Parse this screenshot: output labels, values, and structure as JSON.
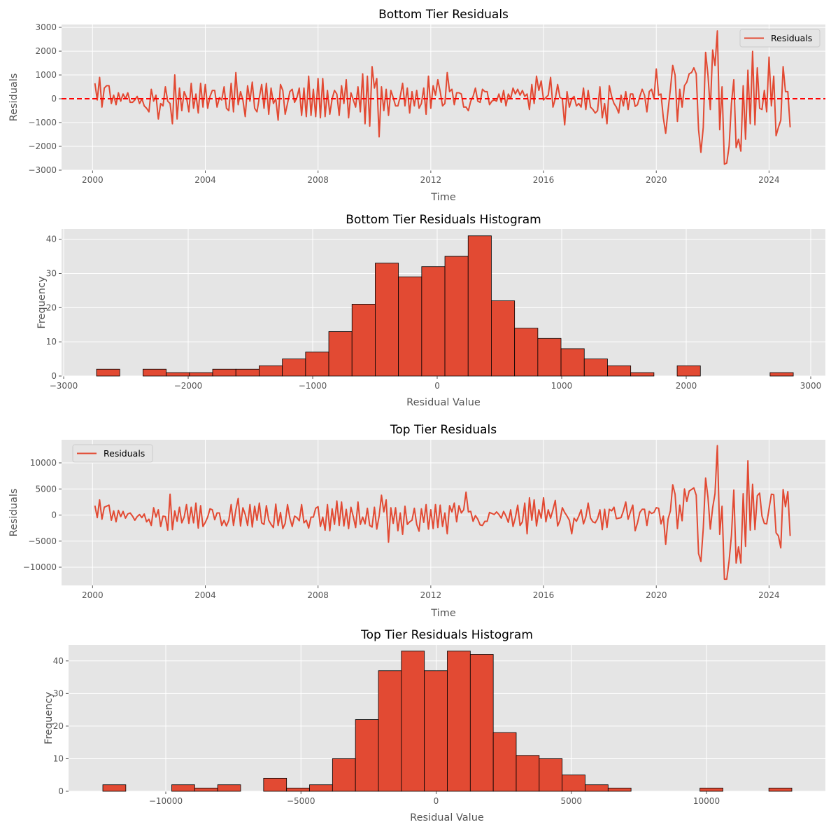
{
  "chart_data": [
    {
      "type": "line",
      "title": "Bottom Tier Residuals",
      "xlabel": "Time",
      "ylabel": "Residuals",
      "x_start": "2000-02",
      "x_frequency": "monthly",
      "xlim": [
        1998.9,
        2026.0
      ],
      "ylim": [
        -3000,
        3120
      ],
      "xticks": [
        2000,
        2004,
        2008,
        2012,
        2016,
        2020,
        2024
      ],
      "yticks": [
        -3000,
        -2000,
        -1000,
        0,
        1000,
        2000,
        3000
      ],
      "grid": true,
      "legend": {
        "position": "top-right",
        "entries": [
          "Residuals"
        ]
      },
      "reference_line": {
        "y": 0,
        "style": "dashed",
        "color": "#FF0000"
      },
      "series": [
        {
          "name": "Residuals",
          "color": "#E24A33",
          "values": [
            650,
            -50,
            900,
            -350,
            450,
            550,
            550,
            -200,
            150,
            -250,
            250,
            -100,
            200,
            0,
            250,
            -150,
            -150,
            -50,
            100,
            -200,
            0,
            -300,
            -400,
            -550,
            400,
            -100,
            150,
            -850,
            -200,
            -300,
            500,
            -100,
            -200,
            -1050,
            1000,
            -850,
            450,
            -500,
            300,
            50,
            -550,
            650,
            -400,
            200,
            -600,
            650,
            -350,
            600,
            -400,
            100,
            350,
            350,
            -350,
            50,
            -50,
            500,
            -400,
            -500,
            650,
            -550,
            1100,
            -250,
            300,
            -50,
            -750,
            550,
            -100,
            700,
            -400,
            -550,
            50,
            600,
            -400,
            650,
            -650,
            450,
            -200,
            0,
            -900,
            600,
            350,
            -650,
            -200,
            300,
            400,
            -150,
            50,
            450,
            -700,
            450,
            -750,
            950,
            -700,
            400,
            -750,
            850,
            -800,
            850,
            -750,
            350,
            -650,
            0,
            350,
            200,
            -700,
            550,
            -200,
            800,
            -800,
            250,
            -50,
            -350,
            500,
            -550,
            1050,
            -1050,
            950,
            -1150,
            1350,
            450,
            850,
            -1600,
            500,
            -500,
            400,
            -700,
            350,
            50,
            -300,
            -300,
            100,
            650,
            -300,
            450,
            -600,
            300,
            -300,
            350,
            -400,
            -200,
            450,
            -650,
            950,
            -400,
            550,
            150,
            800,
            300,
            -300,
            -200,
            1100,
            300,
            400,
            -250,
            250,
            250,
            200,
            -350,
            -350,
            -500,
            -100,
            100,
            450,
            -100,
            -150,
            400,
            300,
            300,
            -250,
            -100,
            -50,
            -100,
            200,
            -150,
            350,
            -300,
            200,
            0,
            450,
            200,
            400,
            150,
            350,
            100,
            200,
            -450,
            600,
            -200,
            950,
            350,
            750,
            -50,
            50,
            150,
            900,
            -350,
            0,
            600,
            50,
            0,
            -1100,
            300,
            -350,
            0,
            100,
            -300,
            -200,
            -350,
            450,
            -450,
            350,
            -350,
            -450,
            -600,
            -500,
            500,
            -800,
            -200,
            -1050,
            550,
            100,
            -200,
            -350,
            -600,
            150,
            -300,
            300,
            -450,
            200,
            200,
            -320,
            -250,
            100,
            400,
            150,
            -550,
            300,
            400,
            0,
            1250,
            150,
            200,
            -800,
            -1450,
            -500,
            400,
            1400,
            1000,
            -950,
            400,
            -350,
            550,
            700,
            1050,
            1100,
            1300,
            1050,
            -1300,
            -2250,
            -1200,
            1950,
            1000,
            -450,
            2050,
            1400,
            2850,
            -1300,
            500,
            -2750,
            -2700,
            -2000,
            -200,
            800,
            -2050,
            -1700,
            -2200,
            550,
            -1700,
            1200,
            -1050,
            1990,
            -1100,
            1300,
            -400,
            -450,
            350,
            -550,
            1750,
            -300,
            950,
            -1550,
            -1200,
            -900,
            1350,
            300,
            300,
            -1200
          ]
        }
      ]
    },
    {
      "type": "bar",
      "title": "Bottom Tier Residuals Histogram",
      "xlabel": "Residual Value",
      "ylabel": "Frequency",
      "bin_range": [
        -2736,
        2860
      ],
      "bins": 30,
      "counts": [
        2,
        0,
        2,
        1,
        1,
        2,
        2,
        3,
        5,
        7,
        13,
        21,
        33,
        29,
        32,
        35,
        41,
        22,
        14,
        11,
        8,
        5,
        3,
        1,
        0,
        3,
        0,
        0,
        0,
        1
      ],
      "xlim": [
        -3017,
        3118
      ],
      "ylim": [
        0,
        43
      ],
      "xticks": [
        -3000,
        -2000,
        -1000,
        0,
        1000,
        2000,
        3000
      ],
      "yticks": [
        0,
        10,
        20,
        30,
        40
      ],
      "grid": true,
      "color": "#E24A33"
    },
    {
      "type": "line",
      "title": "Top Tier Residuals",
      "xlabel": "Time",
      "ylabel": "Residuals",
      "x_start": "2000-02",
      "x_frequency": "monthly",
      "xlim": [
        1998.9,
        2026.0
      ],
      "ylim": [
        -13490,
        14430
      ],
      "xticks": [
        2000,
        2004,
        2008,
        2012,
        2016,
        2020,
        2024
      ],
      "yticks": [
        -10000,
        -5000,
        0,
        5000,
        10000
      ],
      "grid": true,
      "legend": {
        "position": "top-left",
        "entries": [
          "Residuals"
        ]
      },
      "series": [
        {
          "name": "Residuals",
          "color": "#E24A33",
          "values": [
            1800,
            -500,
            2900,
            -800,
            1500,
            1700,
            1900,
            -1000,
            800,
            -1300,
            900,
            -300,
            700,
            -600,
            200,
            400,
            -200,
            -1000,
            -300,
            100,
            -500,
            200,
            -1300,
            -800,
            -2000,
            1400,
            -400,
            1000,
            -2200,
            -200,
            -300,
            -2900,
            4000,
            -2800,
            800,
            -1200,
            1500,
            -1500,
            -400,
            2000,
            -1600,
            1500,
            -1500,
            2300,
            -2500,
            1800,
            -2200,
            -1400,
            -400,
            1200,
            1000,
            -900,
            400,
            400,
            -2000,
            -1000,
            -2100,
            -1000,
            2000,
            -2000,
            1000,
            3200,
            -2100,
            1400,
            100,
            -2000,
            2000,
            -2300,
            1700,
            -1000,
            2300,
            -1500,
            -1800,
            1800,
            -1000,
            -1800,
            -2400,
            2100,
            -2000,
            500,
            -2600,
            -1600,
            2000,
            -600,
            -2200,
            -200,
            -500,
            -1100,
            2000,
            -1500,
            -1000,
            -2500,
            -400,
            -400,
            1300,
            1600,
            -2200,
            -400,
            -2900,
            2000,
            -3000,
            1200,
            -1800,
            2700,
            -2000,
            2500,
            -2100,
            1100,
            -2600,
            1500,
            -300,
            -2400,
            2500,
            -1800,
            -400,
            -1700,
            1300,
            -2000,
            -2300,
            1500,
            -2700,
            -200,
            3800,
            600,
            2900,
            -5200,
            1400,
            -1600,
            1400,
            -3000,
            400,
            -3700,
            1700,
            -1800,
            -1300,
            -1000,
            1300,
            -1800,
            -3100,
            1200,
            -1400,
            2000,
            -2700,
            1000,
            -2600,
            2000,
            -2400,
            1900,
            -2200,
            400,
            -3600,
            1800,
            600,
            2300,
            -1300,
            1800,
            400,
            1000,
            4400,
            600,
            700,
            -1200,
            -100,
            -800,
            -1900,
            -2000,
            -1200,
            -1200,
            500,
            300,
            100,
            600,
            100,
            -600,
            700,
            -200,
            -1400,
            1000,
            -2200,
            -500,
            1900,
            -2000,
            -1300,
            2300,
            -3600,
            3300,
            -1000,
            2900,
            -2100,
            1000,
            -600,
            3300,
            -1300,
            1000,
            -600,
            1000,
            2800,
            -2100,
            -1000,
            1400,
            500,
            -200,
            -1000,
            -3600,
            -600,
            -1200,
            -200,
            1000,
            -1700,
            -400,
            2300,
            -600,
            -1300,
            -1500,
            -700,
            1000,
            -2800,
            1100,
            -2400,
            1100,
            800,
            1500,
            -700,
            -600,
            -500,
            800,
            2500,
            -800,
            600,
            1900,
            -3000,
            -1500,
            500,
            1100,
            1100,
            -2000,
            700,
            300,
            500,
            1400,
            1300,
            -1700,
            -200,
            -5600,
            -800,
            800,
            5800,
            4000,
            -2600,
            1900,
            -1100,
            5000,
            2600,
            4600,
            4900,
            5200,
            3800,
            -7400,
            -8900,
            -2600,
            7100,
            3400,
            -2700,
            1400,
            4100,
            13300,
            -3700,
            1700,
            -12300,
            -12300,
            -8800,
            -3900,
            4800,
            -9200,
            -6100,
            -9200,
            4100,
            -6000,
            10400,
            -2900,
            5900,
            -2800,
            3700,
            4200,
            -200,
            -1600,
            -1700,
            1200,
            4000,
            3900,
            -3400,
            -4000,
            -6300,
            4900,
            1600,
            4500,
            -4000
          ]
        }
      ]
    },
    {
      "type": "bar",
      "title": "Top Tier Residuals Histogram",
      "xlabel": "Residual Value",
      "ylabel": "Frequency",
      "bin_range": [
        -12328,
        13156
      ],
      "bins": 30,
      "counts": [
        2,
        0,
        0,
        2,
        1,
        2,
        0,
        4,
        1,
        2,
        10,
        22,
        37,
        43,
        37,
        43,
        42,
        18,
        11,
        10,
        5,
        2,
        1,
        0,
        0,
        0,
        1,
        0,
        0,
        1
      ],
      "xlim": [
        -13596,
        14398
      ],
      "ylim": [
        0,
        44.9
      ],
      "xticks": [
        -10000,
        -5000,
        0,
        5000,
        10000
      ],
      "yticks": [
        0,
        10,
        20,
        30,
        40
      ],
      "grid": true,
      "color": "#E24A33"
    }
  ]
}
